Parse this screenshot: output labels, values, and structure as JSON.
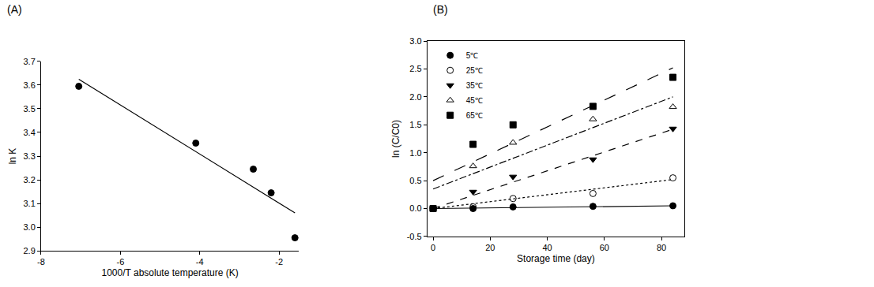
{
  "chart_data": [
    {
      "type": "scatter",
      "title": "(A)",
      "x_label": "1000/T absolute temperature (K)",
      "y_label": "ln K",
      "xlim": [
        -8,
        -1.5
      ],
      "xticks": [
        -8,
        -6,
        -4,
        -2
      ],
      "ylim": [
        2.9,
        3.7
      ],
      "yticks": [
        2.9,
        {
          "value": 3,
          "label": "3.0"
        },
        3.1,
        3.2,
        3.3,
        3.4,
        3.5,
        3.6,
        3.7
      ],
      "grid": false,
      "series": [
        {
          "type": "scatter",
          "marker": "circle",
          "color": "#000000",
          "x": [
            -7.05,
            -4.1,
            -2.65,
            -2.2,
            -1.6
          ],
          "values": [
            3.595,
            3.355,
            3.245,
            3.145,
            2.955
          ]
        },
        {
          "type": "line",
          "line_style": "solid",
          "color": "#000000",
          "x": [
            -7.05,
            -1.6
          ],
          "values": [
            3.625,
            3.06
          ]
        }
      ]
    },
    {
      "type": "scatter",
      "title": "(B)",
      "x_label": "Storage time (day)",
      "y_label": "ln (C/C0)",
      "xlim": [
        -2,
        88
      ],
      "xticks": [
        0,
        20,
        40,
        60,
        80
      ],
      "ylim": [
        -0.5,
        3
      ],
      "yticks": [
        -0.5,
        {
          "value": 0,
          "label": "0.0"
        },
        0.5,
        {
          "value": 1,
          "label": "1.0"
        },
        1.5,
        {
          "value": 2,
          "label": "2.0"
        },
        2.5,
        {
          "value": 3,
          "label": "3.0"
        }
      ],
      "grid": false,
      "legend": "upper left",
      "series": [
        {
          "name": "5℃",
          "color": "#000000",
          "marker": "circle",
          "line_style": "solid",
          "x": [
            0,
            14,
            28,
            56,
            84
          ],
          "values": [
            0,
            0,
            0.03,
            0.04,
            0.05
          ],
          "fit": {
            "x": [
              0,
              84
            ],
            "values": [
              0,
              0.05
            ]
          }
        },
        {
          "name": "25℃",
          "color": "#000000",
          "marker": "circle-open",
          "line_style": "dot",
          "x": [
            0,
            14,
            28,
            56,
            84
          ],
          "values": [
            0,
            0.03,
            0.18,
            0.27,
            0.55
          ],
          "fit": {
            "x": [
              0,
              84
            ],
            "values": [
              0,
              0.52
            ]
          }
        },
        {
          "name": "35℃",
          "color": "#000000",
          "marker": "triangle-down",
          "line_style": "dash",
          "x": [
            0,
            14,
            28,
            56,
            84
          ],
          "values": [
            0,
            0.3,
            0.57,
            0.88,
            1.43
          ],
          "fit": {
            "x": [
              0,
              84
            ],
            "values": [
              0,
              1.42
            ]
          }
        },
        {
          "name": "45℃",
          "color": "#000000",
          "marker": "triangle-up-open",
          "line_style": "dashdot",
          "x": [
            0,
            14,
            28,
            56,
            84
          ],
          "values": [
            0,
            0.76,
            1.18,
            1.6,
            1.82
          ],
          "fit": {
            "x": [
              0,
              84
            ],
            "values": [
              0.35,
              2.0
            ]
          }
        },
        {
          "name": "65℃",
          "color": "#000000",
          "marker": "square",
          "line_style": "longdash",
          "x": [
            0,
            14,
            28,
            56,
            84
          ],
          "values": [
            0,
            1.15,
            1.5,
            1.83,
            2.35
          ],
          "fit": {
            "x": [
              0,
              84
            ],
            "values": [
              0.5,
              2.52
            ]
          }
        }
      ]
    }
  ]
}
